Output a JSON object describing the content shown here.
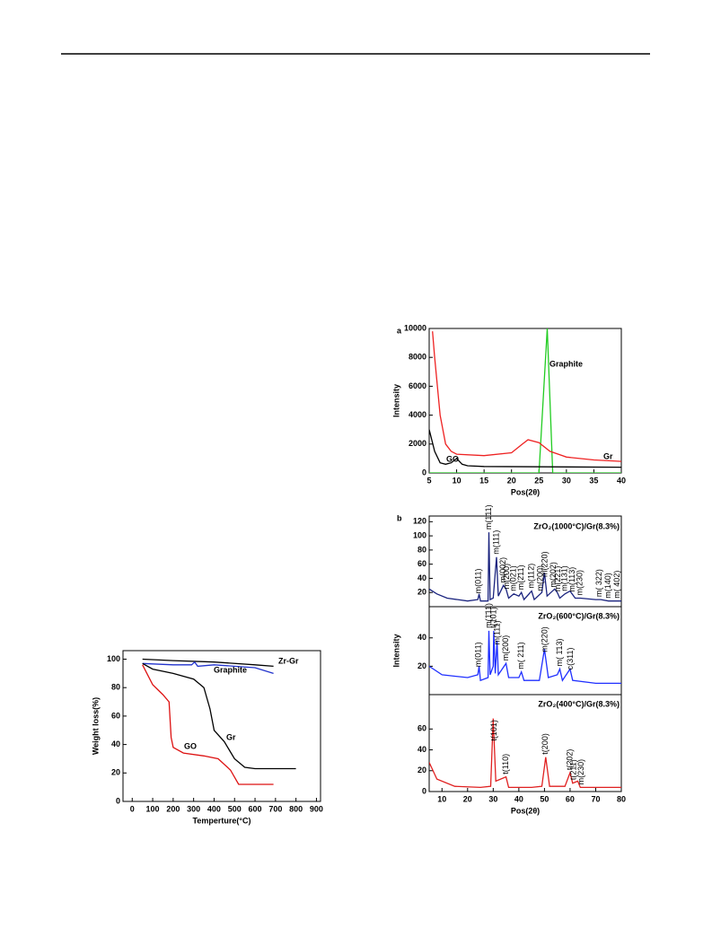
{
  "chart_data": [
    {
      "type": "line",
      "y_label": "Weight loss(%)",
      "x_label": "Temperture(°C)",
      "xlim": [
        -45,
        920
      ],
      "ylim": [
        0,
        106
      ],
      "xticks": [
        0,
        100,
        200,
        300,
        400,
        500,
        600,
        700,
        800,
        900
      ],
      "yticks": [
        0,
        20,
        40,
        60,
        80,
        100
      ],
      "series": [
        {
          "name": "Zr-Gr",
          "color": "#000000",
          "x": [
            50,
            200,
            400,
            600,
            690
          ],
          "values": [
            100,
            99,
            98,
            96,
            95
          ]
        },
        {
          "name": "Graphite",
          "color": "#2233cc",
          "x": [
            50,
            200,
            290,
            305,
            320,
            400,
            600,
            690
          ],
          "values": [
            97,
            96,
            96,
            98,
            95,
            96,
            94,
            90
          ]
        },
        {
          "name": "Gr",
          "color": "#000000",
          "x": [
            50,
            100,
            200,
            300,
            350,
            380,
            400,
            450,
            500,
            550,
            600,
            800
          ],
          "values": [
            97,
            93,
            90,
            86,
            80,
            65,
            50,
            42,
            30,
            24,
            23,
            23
          ]
        },
        {
          "name": "GO",
          "color": "#dd1111",
          "x": [
            50,
            100,
            150,
            180,
            190,
            200,
            250,
            350,
            420,
            480,
            520,
            690
          ],
          "values": [
            96,
            82,
            75,
            70,
            45,
            38,
            34,
            32,
            30,
            22,
            12,
            12
          ]
        }
      ]
    },
    {
      "type": "line",
      "label": "a",
      "y_label": "Intensity",
      "x_label": "Pos(2θ)",
      "xlim": [
        5,
        40
      ],
      "ylim": [
        0,
        10000
      ],
      "xticks": [
        5,
        10,
        15,
        20,
        25,
        30,
        35,
        40
      ],
      "yticks": [
        0,
        2000,
        4000,
        6000,
        8000,
        10000
      ],
      "series": [
        {
          "name": "Graphite",
          "color": "#22cc22",
          "x": [
            5,
            25,
            26.5,
            27.5,
            40
          ],
          "values": [
            0,
            0,
            10000,
            0,
            0
          ]
        },
        {
          "name": "Gr",
          "color": "#ee2222",
          "x": [
            5.6,
            6,
            7,
            8,
            9,
            10,
            15,
            20,
            22,
            23,
            25,
            27,
            30,
            35,
            40
          ],
          "values": [
            9800,
            8000,
            4000,
            2000,
            1500,
            1300,
            1200,
            1400,
            2000,
            2300,
            2100,
            1500,
            1100,
            900,
            800
          ]
        },
        {
          "name": "GO",
          "color": "#000000",
          "x": [
            5,
            6,
            7,
            8,
            9,
            10,
            11,
            12,
            15,
            40
          ],
          "values": [
            3000,
            1500,
            700,
            600,
            700,
            1000,
            600,
            500,
            450,
            400
          ]
        }
      ]
    },
    {
      "type": "line",
      "label": "b",
      "xlim": [
        5,
        80
      ],
      "ylim": [
        0,
        128
      ],
      "xticks": [],
      "yticks": [
        20,
        40,
        60,
        80,
        100,
        120
      ],
      "series": [
        {
          "name": "ZrO₂(1000°C)/Gr(8.3%)",
          "color": "#1a237e",
          "x": [
            5,
            8,
            12,
            20,
            24,
            24.5,
            25,
            28,
            28.3,
            28.8,
            30,
            31.3,
            32,
            34,
            35,
            36,
            38,
            40,
            41,
            42,
            45,
            46,
            49,
            50,
            51,
            54,
            55,
            56,
            58,
            60,
            62,
            64,
            70,
            72,
            75,
            78,
            80
          ],
          "values": [
            25,
            18,
            12,
            8,
            10,
            18,
            8,
            8,
            105,
            10,
            12,
            70,
            15,
            30,
            25,
            12,
            18,
            15,
            20,
            10,
            22,
            10,
            20,
            48,
            15,
            25,
            20,
            12,
            18,
            22,
            12,
            12,
            10,
            10,
            8,
            8,
            8
          ]
        }
      ],
      "annotations": [
        {
          "x": 24.3,
          "text": "m(011)"
        },
        {
          "x": 28.3,
          "text": "m(1̄11)"
        },
        {
          "x": 31.3,
          "text": "m(111)"
        },
        {
          "x": 34,
          "text": "m(002)"
        },
        {
          "x": 35.3,
          "text": "m(200)"
        },
        {
          "x": 38,
          "text": "m(021)"
        },
        {
          "x": 41,
          "text": "m(2̄11)"
        },
        {
          "x": 45,
          "text": "m(112)"
        },
        {
          "x": 48.5,
          "text": "m(200)"
        },
        {
          "x": 50.3,
          "text": "m(220)"
        },
        {
          "x": 53.5,
          "text": "m(202)"
        },
        {
          "x": 55.3,
          "text": "m(221)"
        },
        {
          "x": 58,
          "text": "m(131)"
        },
        {
          "x": 61,
          "text": "m(113)"
        },
        {
          "x": 64,
          "text": "m(230)"
        },
        {
          "x": 71.5,
          "text": "m( 322)"
        },
        {
          "x": 75,
          "text": "m(140)"
        },
        {
          "x": 78.5,
          "text": "m( 402)"
        }
      ]
    },
    {
      "type": "line",
      "y_label": "Intensity",
      "xlim": [
        5,
        80
      ],
      "ylim": [
        0,
        62
      ],
      "xticks": [],
      "yticks": [
        20,
        40
      ],
      "series": [
        {
          "name": "ZrO₂(600°C)/Gr(8.3%)",
          "color": "#1f2fff",
          "x": [
            5,
            10,
            20,
            24,
            24.5,
            25,
            28,
            28.3,
            28.8,
            30,
            30.2,
            30.8,
            31.5,
            32,
            35,
            36,
            40,
            41,
            42,
            48,
            50,
            51.5,
            55,
            56,
            57,
            60,
            61,
            70,
            80
          ],
          "values": [
            20,
            14,
            12,
            14,
            20,
            10,
            12,
            45,
            14,
            20,
            45,
            15,
            38,
            14,
            22,
            12,
            12,
            16,
            10,
            10,
            32,
            12,
            14,
            18,
            10,
            18,
            10,
            8,
            8
          ]
        }
      ],
      "annotations": [
        {
          "x": 24.3,
          "text": "m(011)"
        },
        {
          "x": 28.3,
          "text": "m(1̄11)"
        },
        {
          "x": 30.2,
          "text": "t(101)"
        },
        {
          "x": 31.6,
          "text": "m(111)"
        },
        {
          "x": 35,
          "text": "m(200)"
        },
        {
          "x": 41,
          "text": "m( 211)"
        },
        {
          "x": 50.3,
          "text": "m(220)"
        },
        {
          "x": 56,
          "text": "m( 1̄13)"
        },
        {
          "x": 60.3,
          "text": "c(311)"
        }
      ]
    },
    {
      "type": "line",
      "x_label": "Pos(2θ)",
      "xlim": [
        5,
        80
      ],
      "ylim": [
        0,
        93
      ],
      "xticks": [
        10,
        20,
        30,
        40,
        50,
        60,
        70,
        80
      ],
      "yticks": [
        0,
        20,
        40,
        60
      ],
      "series": [
        {
          "name": "ZrO₂(400°C)/Gr(8.3%)",
          "color": "#e02020",
          "x": [
            5,
            8,
            15,
            25,
            29,
            30,
            31,
            35,
            36,
            45,
            49,
            50.5,
            52,
            58,
            60,
            61,
            63,
            64,
            80
          ],
          "values": [
            28,
            12,
            5,
            4,
            5,
            70,
            10,
            14,
            4,
            4,
            5,
            33,
            5,
            5,
            18,
            8,
            10,
            4,
            4
          ]
        }
      ],
      "annotations": [
        {
          "x": 30.4,
          "text": "t(101)"
        },
        {
          "x": 35,
          "text": "t(110)"
        },
        {
          "x": 50.5,
          "text": "t(200)"
        },
        {
          "x": 60,
          "text": "t(202)"
        },
        {
          "x": 61.5,
          "text": "t(211)"
        },
        {
          "x": 64.5,
          "text": "m(230)"
        }
      ]
    }
  ]
}
